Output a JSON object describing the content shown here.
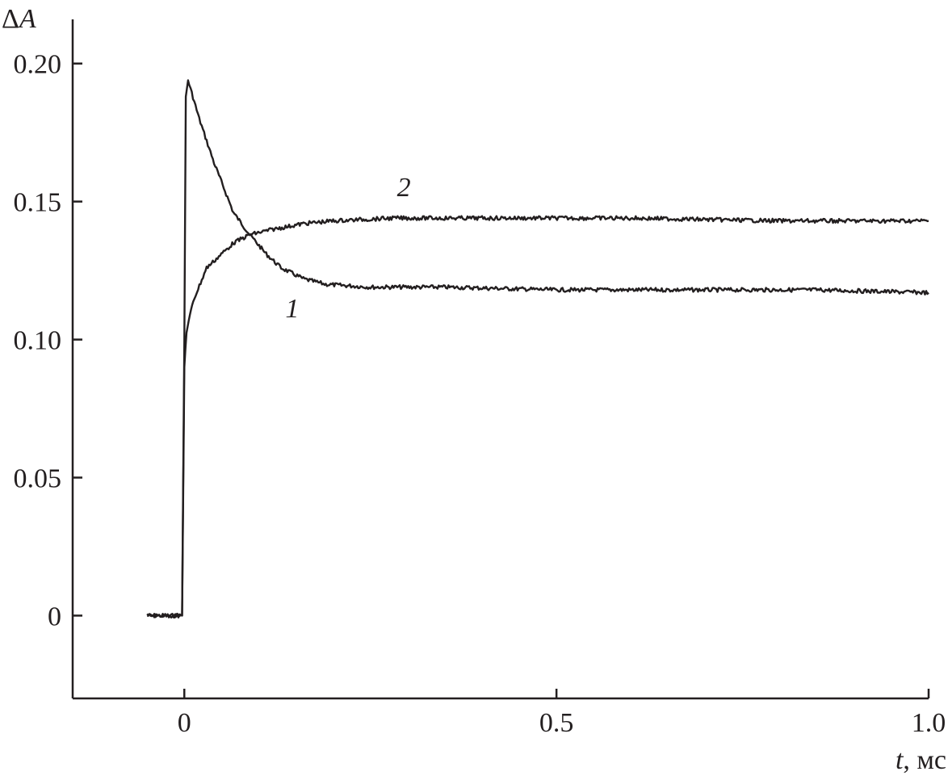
{
  "chart_data": {
    "type": "line",
    "title": "",
    "ylabel": "ΔA",
    "xlabel_var": "t",
    "xlabel_unit": ", мс",
    "xlim": [
      -0.15,
      1.0
    ],
    "ylim": [
      -0.03,
      0.216
    ],
    "grid": false,
    "line_color": "#231f20",
    "x_ticks": [
      {
        "value": 0,
        "label": "0"
      },
      {
        "value": 0.5,
        "label": "0.5"
      },
      {
        "value": 1.0,
        "label": "1.0"
      }
    ],
    "y_ticks": [
      {
        "value": 0,
        "label": "0"
      },
      {
        "value": 0.05,
        "label": "0.05"
      },
      {
        "value": 0.1,
        "label": "0.10"
      },
      {
        "value": 0.15,
        "label": "0.15"
      },
      {
        "value": 0.2,
        "label": "0.20"
      }
    ],
    "series": [
      {
        "name": "1",
        "label_at": [
          0.145,
          0.108
        ],
        "x": [
          -0.05,
          -0.003,
          0.0,
          0.002,
          0.005,
          0.02,
          0.04,
          0.066,
          0.088,
          0.11,
          0.13,
          0.16,
          0.19,
          0.25,
          0.35,
          0.5,
          0.7,
          0.85,
          1.0
        ],
        "y": [
          0,
          0,
          0.1,
          0.188,
          0.194,
          0.18,
          0.164,
          0.146,
          0.138,
          0.131,
          0.126,
          0.122,
          0.12,
          0.119,
          0.119,
          0.118,
          0.118,
          0.118,
          0.117
        ]
      },
      {
        "name": "2",
        "label_at": [
          0.295,
          0.152
        ],
        "x": [
          -0.05,
          -0.003,
          0.0,
          0.003,
          0.012,
          0.03,
          0.066,
          0.088,
          0.12,
          0.16,
          0.2,
          0.28,
          0.4,
          0.6,
          0.8,
          1.0
        ],
        "y": [
          0,
          0,
          0.09,
          0.103,
          0.114,
          0.126,
          0.135,
          0.138,
          0.14,
          0.142,
          0.143,
          0.144,
          0.144,
          0.144,
          0.143,
          0.143
        ]
      }
    ]
  }
}
